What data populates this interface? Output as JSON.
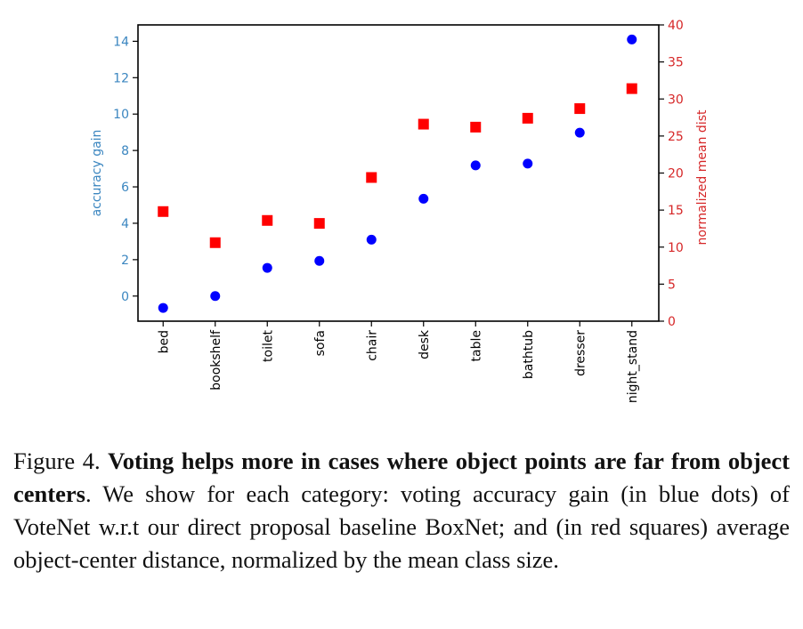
{
  "chart_data": {
    "type": "scatter",
    "categories": [
      "bed",
      "bookshelf",
      "toilet",
      "sofa",
      "chair",
      "desk",
      "table",
      "bathtub",
      "dresser",
      "night_stand"
    ],
    "series": [
      {
        "name": "accuracy gain",
        "axis": "left",
        "marker": "circle",
        "color": "#0000ff",
        "values": [
          -0.65,
          0.0,
          1.55,
          1.93,
          3.1,
          5.35,
          7.18,
          7.28,
          8.98,
          14.1
        ]
      },
      {
        "name": "normalized mean dist",
        "axis": "right",
        "marker": "square",
        "color": "#ff0000",
        "values": [
          14.8,
          10.6,
          13.6,
          13.2,
          19.4,
          26.6,
          26.2,
          27.4,
          28.7,
          31.4
        ]
      }
    ],
    "ylabel": "accuracy gain",
    "ylabel_color": "#3b86c0",
    "ylim": [
      -1.38,
      14.9
    ],
    "yticks": [
      0,
      2,
      4,
      6,
      8,
      10,
      12,
      14
    ],
    "y2label": "normalized mean dist",
    "y2label_color": "#d62728",
    "y2lim": [
      0,
      40
    ],
    "y2ticks": [
      0,
      5,
      10,
      15,
      20,
      25,
      30,
      35,
      40
    ],
    "xlabel": "",
    "grid": false
  },
  "caption": {
    "prefix": "Figure 4. ",
    "bold": "Voting helps more in cases where object points are far from object centers",
    "rest": ". We show for each category: voting accuracy gain (in blue dots) of VoteNet w.r.t our direct proposal baseline BoxNet; and (in red squares) average object-center distance, normalized by the mean class size."
  }
}
